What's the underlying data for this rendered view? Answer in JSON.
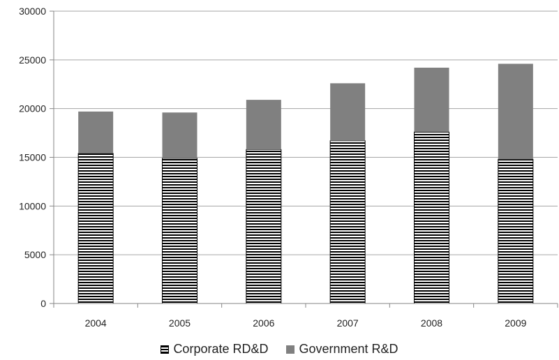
{
  "chart_data": {
    "type": "bar",
    "stacked": true,
    "categories": [
      "2004",
      "2005",
      "2006",
      "2007",
      "2008",
      "2009"
    ],
    "series": [
      {
        "name": "Corporate RD&D",
        "values": [
          15400,
          14900,
          15800,
          16700,
          17600,
          14800
        ],
        "color": "#000000",
        "pattern": "horizontal-stripes"
      },
      {
        "name": "Government R&D",
        "values": [
          4300,
          4700,
          5100,
          5900,
          6600,
          9800
        ],
        "color": "#808080"
      }
    ],
    "y_ticks": [
      "0",
      "5000",
      "10000",
      "15000",
      "20000",
      "25000",
      "30000"
    ],
    "ylim": [
      0,
      30000
    ],
    "grid": true,
    "legend_position": "bottom",
    "title": "",
    "xlabel": "",
    "ylabel": ""
  }
}
